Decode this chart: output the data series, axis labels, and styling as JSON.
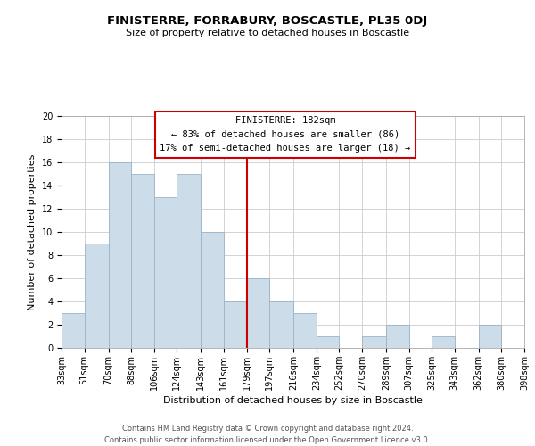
{
  "title": "FINISTERRE, FORRABURY, BOSCASTLE, PL35 0DJ",
  "subtitle": "Size of property relative to detached houses in Boscastle",
  "xlabel": "Distribution of detached houses by size in Boscastle",
  "ylabel": "Number of detached properties",
  "footer_line1": "Contains HM Land Registry data © Crown copyright and database right 2024.",
  "footer_line2": "Contains public sector information licensed under the Open Government Licence v3.0.",
  "bin_edges": [
    33,
    51,
    70,
    88,
    106,
    124,
    143,
    161,
    179,
    197,
    216,
    234,
    252,
    270,
    289,
    307,
    325,
    343,
    362,
    380,
    398
  ],
  "bar_heights": [
    3,
    9,
    16,
    15,
    13,
    15,
    10,
    4,
    6,
    4,
    3,
    1,
    0,
    1,
    2,
    0,
    1,
    0,
    2,
    0
  ],
  "bar_color": "#ccdce8",
  "bar_edge_color": "#9ab4c8",
  "grid_color": "#cccccc",
  "vline_x": 179,
  "vline_color": "#cc0000",
  "ylim": [
    0,
    20
  ],
  "yticks": [
    0,
    2,
    4,
    6,
    8,
    10,
    12,
    14,
    16,
    18,
    20
  ],
  "annotation_title": "FINISTERRE: 182sqm",
  "annotation_line1": "← 83% of detached houses are smaller (86)",
  "annotation_line2": "17% of semi-detached houses are larger (18) →",
  "annotation_box_color": "#ffffff",
  "annotation_box_edge": "#cc0000",
  "x_tick_labels": [
    "33sqm",
    "51sqm",
    "70sqm",
    "88sqm",
    "106sqm",
    "124sqm",
    "143sqm",
    "161sqm",
    "179sqm",
    "197sqm",
    "216sqm",
    "234sqm",
    "252sqm",
    "270sqm",
    "289sqm",
    "307sqm",
    "325sqm",
    "343sqm",
    "362sqm",
    "380sqm",
    "398sqm"
  ],
  "title_fontsize": 9.5,
  "subtitle_fontsize": 8,
  "ylabel_fontsize": 8,
  "xlabel_fontsize": 8,
  "tick_fontsize": 7,
  "annotation_fontsize": 7.5,
  "footer_fontsize": 6
}
